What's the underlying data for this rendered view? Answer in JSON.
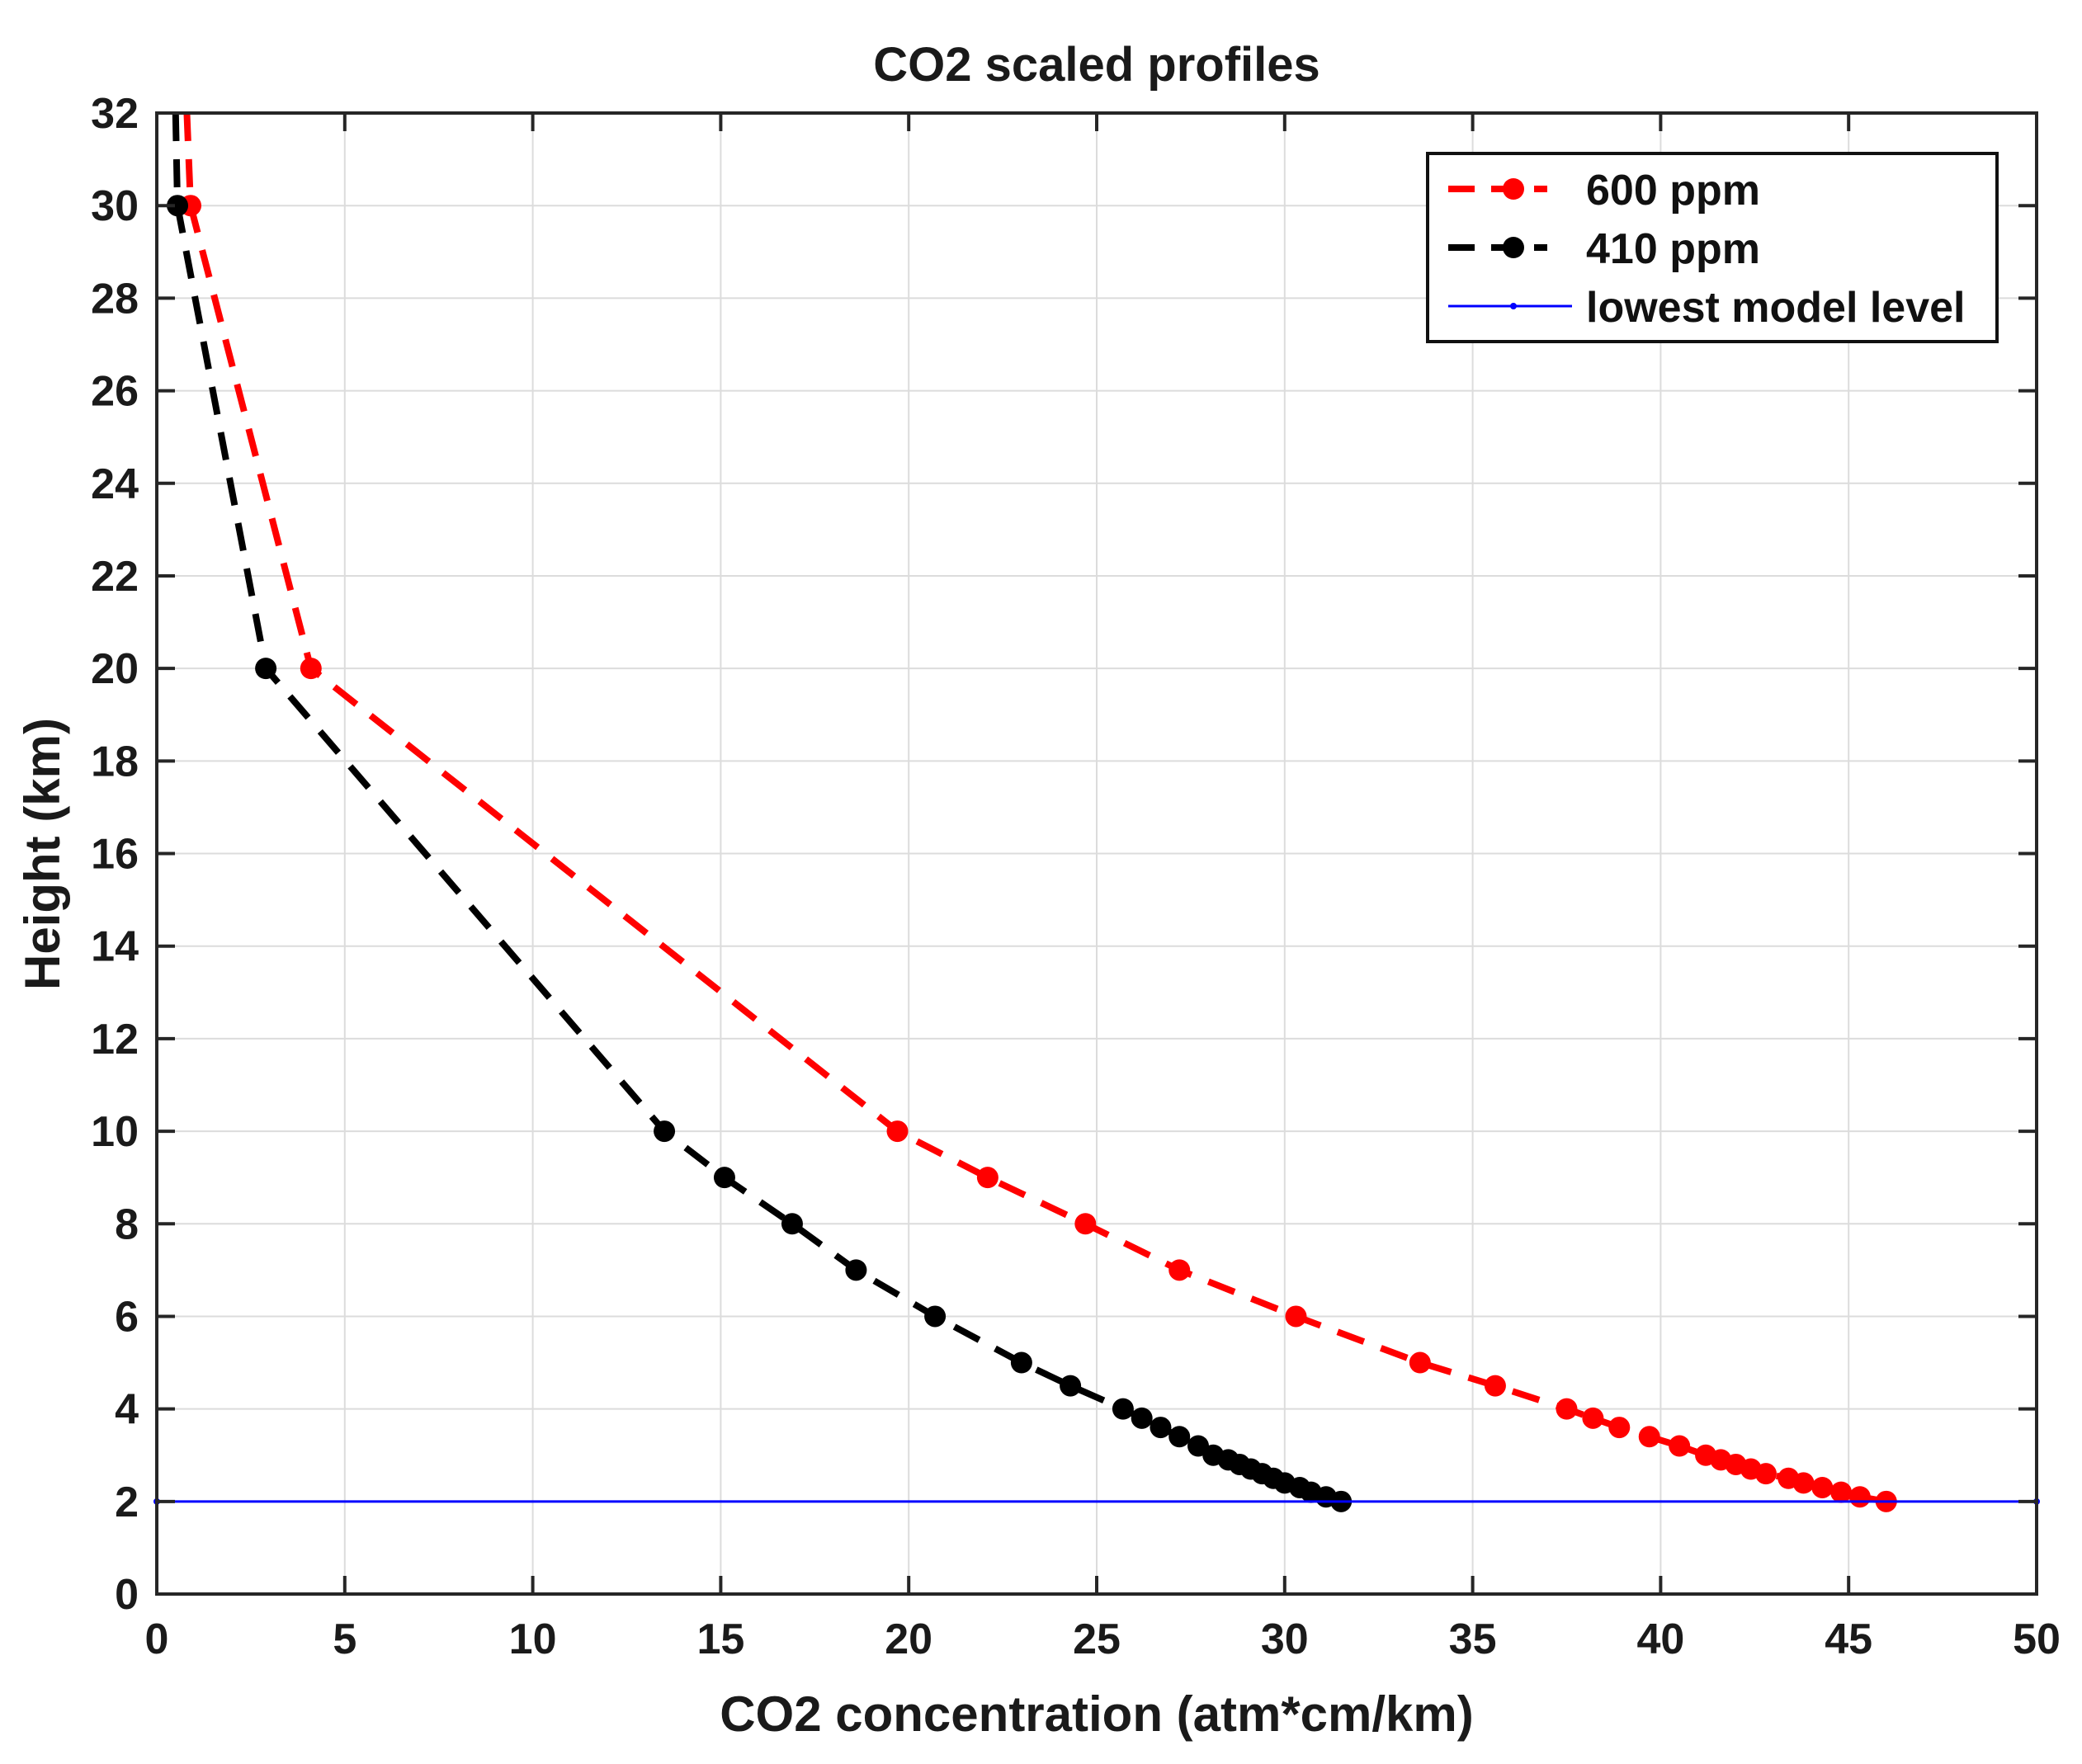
{
  "chart_data": {
    "type": "line",
    "title": "CO2 scaled profiles",
    "xlabel": "CO2 concentration (atm*cm/km)",
    "ylabel": "Height (km)",
    "xlim": [
      0,
      50
    ],
    "ylim": [
      0,
      32
    ],
    "xticks": [
      0,
      5,
      10,
      15,
      20,
      25,
      30,
      35,
      40,
      45,
      50
    ],
    "yticks": [
      0,
      2,
      4,
      6,
      8,
      10,
      12,
      14,
      16,
      18,
      20,
      22,
      24,
      26,
      28,
      30,
      32
    ],
    "xtick_labels": [
      "0",
      "5",
      "10",
      "15",
      "20",
      "25",
      "30",
      "35",
      "40",
      "45",
      "50"
    ],
    "ytick_labels": [
      "0",
      "2",
      "4",
      "6",
      "8",
      "10",
      "12",
      "14",
      "16",
      "18",
      "20",
      "22",
      "24",
      "26",
      "28",
      "30",
      "32"
    ],
    "grid": true,
    "legend_position": "top-right",
    "series": [
      {
        "name": "600 ppm",
        "color": "#ff0000",
        "line_style": "dashed",
        "marker": "circle",
        "points": [
          [
            0.8,
            32
          ],
          [
            0.9,
            30
          ],
          [
            4.1,
            20
          ],
          [
            19.7,
            10
          ],
          [
            22.1,
            9
          ],
          [
            24.7,
            8
          ],
          [
            27.2,
            7
          ],
          [
            30.3,
            6
          ],
          [
            33.6,
            5
          ],
          [
            35.6,
            4.5
          ],
          [
            37.5,
            4
          ],
          [
            38.2,
            3.8
          ],
          [
            38.9,
            3.6
          ],
          [
            39.7,
            3.4
          ],
          [
            40.5,
            3.2
          ],
          [
            41.2,
            3.0
          ],
          [
            41.6,
            2.9
          ],
          [
            42.0,
            2.8
          ],
          [
            42.4,
            2.7
          ],
          [
            42.8,
            2.6
          ],
          [
            43.4,
            2.5
          ],
          [
            43.8,
            2.4
          ],
          [
            44.3,
            2.3
          ],
          [
            44.8,
            2.2
          ],
          [
            45.3,
            2.1
          ],
          [
            46.0,
            2.0
          ]
        ]
      },
      {
        "name": "410 ppm",
        "color": "#000000",
        "line_style": "dashed",
        "marker": "circle",
        "points": [
          [
            0.5,
            32
          ],
          [
            0.55,
            30
          ],
          [
            2.9,
            20
          ],
          [
            13.5,
            10
          ],
          [
            15.1,
            9
          ],
          [
            16.9,
            8
          ],
          [
            18.6,
            7
          ],
          [
            20.7,
            6
          ],
          [
            23.0,
            5
          ],
          [
            24.3,
            4.5
          ],
          [
            25.7,
            4
          ],
          [
            26.2,
            3.8
          ],
          [
            26.7,
            3.6
          ],
          [
            27.2,
            3.4
          ],
          [
            27.7,
            3.2
          ],
          [
            28.1,
            3.0
          ],
          [
            28.5,
            2.9
          ],
          [
            28.8,
            2.8
          ],
          [
            29.1,
            2.7
          ],
          [
            29.4,
            2.6
          ],
          [
            29.7,
            2.5
          ],
          [
            30.0,
            2.4
          ],
          [
            30.4,
            2.3
          ],
          [
            30.7,
            2.2
          ],
          [
            31.1,
            2.1
          ],
          [
            31.5,
            2.0
          ]
        ]
      },
      {
        "name": "lowest model level",
        "color": "#0000ff",
        "line_style": "solid",
        "marker": "dot",
        "points": [
          [
            0,
            2
          ],
          [
            50,
            2
          ]
        ]
      }
    ]
  }
}
